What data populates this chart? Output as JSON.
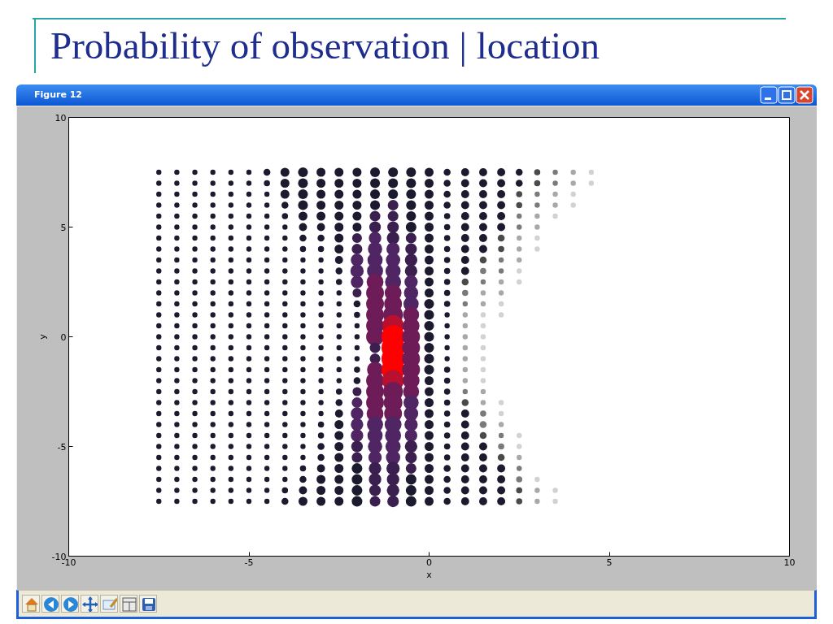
{
  "chart_data": {
    "type": "bubble",
    "title": "Probability of observation | location",
    "xlabel": "x",
    "ylabel": "y",
    "annotations": [
      "Figure 12"
    ],
    "xlim": [
      -10,
      10
    ],
    "ylim": [
      -10,
      10
    ],
    "xticks": [
      -10,
      -5,
      0,
      5,
      10
    ],
    "yticks": [
      -10,
      -5,
      0,
      5,
      10
    ],
    "grid": false,
    "marker": "circle",
    "series": [
      {
        "color": "#1c1a2e",
        "x": [
          -7.5,
          -7.5,
          -7.5,
          -7.5,
          -7.5,
          -7.5,
          -7.5,
          -7.5,
          -7.5,
          -7.5,
          -7.5,
          -7.5,
          -7.5,
          -7.5,
          -7.5,
          -7.5,
          -7.5,
          -7.5,
          -7.5,
          -7.5,
          -7.5,
          -7.5,
          -7.5,
          -7.5,
          -7.5,
          -7.5,
          -7.5,
          -7.5,
          -7.5,
          -7.5,
          -7.5
        ],
        "values": [
          7.5,
          7,
          6.5,
          6,
          5.5,
          5,
          4.5,
          4,
          3.5,
          3,
          2.5,
          2,
          1.5,
          1,
          0.5,
          0,
          -0.5,
          -1,
          -1.5,
          -2,
          -2.5,
          -3,
          -3.5,
          -4,
          -4.5,
          -5,
          -5.5,
          -6,
          -6.5,
          -7,
          -7.5
        ],
        "sizes": [
          0.05,
          0.05,
          0.05,
          0.05,
          0.05,
          0.05,
          0.05,
          0.05,
          0.05,
          0.05,
          0.05,
          0.05,
          0.05,
          0.05,
          0.05,
          0.05,
          0.05,
          0.05,
          0.05,
          0.05,
          0.05,
          0.05,
          0.05,
          0.05,
          0.05,
          0.05,
          0.05,
          0.05,
          0.05,
          0.05,
          0.05
        ]
      },
      {
        "color": "#1c1a2e",
        "x": [
          -7,
          -7,
          -7,
          -7,
          -7,
          -7,
          -7,
          -7,
          -7,
          -7,
          -7,
          -7,
          -7,
          -7,
          -7,
          -7,
          -7,
          -7,
          -7,
          -7,
          -7,
          -7,
          -7,
          -7,
          -7,
          -7,
          -7,
          -7,
          -7,
          -7,
          -7
        ],
        "values": [
          7.5,
          7,
          6.5,
          6,
          5.5,
          5,
          4.5,
          4,
          3.5,
          3,
          2.5,
          2,
          1.5,
          1,
          0.5,
          0,
          -0.5,
          -1,
          -1.5,
          -2,
          -2.5,
          -3,
          -3.5,
          -4,
          -4.5,
          -5,
          -5.5,
          -6,
          -6.5,
          -7,
          -7.5
        ],
        "sizes": [
          0.05,
          0.05,
          0.05,
          0.05,
          0.05,
          0.05,
          0.05,
          0.05,
          0.05,
          0.05,
          0.05,
          0.05,
          0.05,
          0.05,
          0.05,
          0.05,
          0.05,
          0.05,
          0.05,
          0.05,
          0.05,
          0.05,
          0.05,
          0.05,
          0.05,
          0.05,
          0.05,
          0.05,
          0.05,
          0.05,
          0.05
        ]
      },
      {
        "color": "#1c1a2e",
        "x": [
          -6.5,
          -6.5,
          -6.5,
          -6.5,
          -6.5,
          -6.5,
          -6.5,
          -6.5,
          -6.5,
          -6.5,
          -6.5,
          -6.5,
          -6.5,
          -6.5,
          -6.5,
          -6.5,
          -6.5,
          -6.5,
          -6.5,
          -6.5,
          -6.5,
          -6.5,
          -6.5,
          -6.5,
          -6.5,
          -6.5,
          -6.5,
          -6.5,
          -6.5,
          -6.5,
          -6.5
        ],
        "values": [
          7.5,
          7,
          6.5,
          6,
          5.5,
          5,
          4.5,
          4,
          3.5,
          3,
          2.5,
          2,
          1.5,
          1,
          0.5,
          0,
          -0.5,
          -1,
          -1.5,
          -2,
          -2.5,
          -3,
          -3.5,
          -4,
          -4.5,
          -5,
          -5.5,
          -6,
          -6.5,
          -7,
          -7.5
        ],
        "sizes": [
          0.05,
          0.05,
          0.05,
          0.05,
          0.05,
          0.05,
          0.05,
          0.05,
          0.05,
          0.05,
          0.05,
          0.05,
          0.05,
          0.05,
          0.05,
          0.05,
          0.05,
          0.05,
          0.05,
          0.05,
          0.05,
          0.05,
          0.05,
          0.05,
          0.05,
          0.05,
          0.05,
          0.05,
          0.05,
          0.05,
          0.05
        ]
      },
      {
        "color": "#1c1a2e",
        "x": [
          -6,
          -6,
          -6,
          -6,
          -6,
          -6,
          -6,
          -6,
          -6,
          -6,
          -6,
          -6,
          -6,
          -6,
          -6,
          -6,
          -6,
          -6,
          -6,
          -6,
          -6,
          -6,
          -6,
          -6,
          -6,
          -6,
          -6,
          -6,
          -6,
          -6,
          -6
        ],
        "values": [
          7.5,
          7,
          6.5,
          6,
          5.5,
          5,
          4.5,
          4,
          3.5,
          3,
          2.5,
          2,
          1.5,
          1,
          0.5,
          0,
          -0.5,
          -1,
          -1.5,
          -2,
          -2.5,
          -3,
          -3.5,
          -4,
          -4.5,
          -5,
          -5.5,
          -6,
          -6.5,
          -7,
          -7.5
        ],
        "sizes": [
          0.05,
          0.05,
          0.05,
          0.05,
          0.05,
          0.05,
          0.05,
          0.05,
          0.05,
          0.05,
          0.05,
          0.05,
          0.05,
          0.05,
          0.05,
          0.05,
          0.05,
          0.05,
          0.05,
          0.05,
          0.05,
          0.05,
          0.05,
          0.05,
          0.05,
          0.05,
          0.05,
          0.05,
          0.05,
          0.05,
          0.05
        ]
      },
      {
        "color": "#1c1a2e",
        "x": [
          -5.5,
          -5.5,
          -5.5,
          -5.5,
          -5.5,
          -5.5,
          -5.5,
          -5.5,
          -5.5,
          -5.5,
          -5.5,
          -5.5,
          -5.5,
          -5.5,
          -5.5,
          -5.5,
          -5.5,
          -5.5,
          -5.5,
          -5.5,
          -5.5,
          -5.5,
          -5.5,
          -5.5,
          -5.5,
          -5.5,
          -5.5,
          -5.5,
          -5.5,
          -5.5,
          -5.5
        ],
        "values": [
          7.5,
          7,
          6.5,
          6,
          5.5,
          5,
          4.5,
          4,
          3.5,
          3,
          2.5,
          2,
          1.5,
          1,
          0.5,
          0,
          -0.5,
          -1,
          -1.5,
          -2,
          -2.5,
          -3,
          -3.5,
          -4,
          -4.5,
          -5,
          -5.5,
          -6,
          -6.5,
          -7,
          -7.5
        ],
        "sizes": [
          0.05,
          0.05,
          0.05,
          0.05,
          0.05,
          0.05,
          0.05,
          0.05,
          0.05,
          0.05,
          0.05,
          0.05,
          0.05,
          0.05,
          0.05,
          0.05,
          0.05,
          0.05,
          0.05,
          0.05,
          0.05,
          0.05,
          0.05,
          0.05,
          0.05,
          0.05,
          0.05,
          0.05,
          0.05,
          0.05,
          0.05
        ]
      },
      {
        "color": "#1c1a2e",
        "x": [
          -5,
          -5,
          -5,
          -5,
          -5,
          -5,
          -5,
          -5,
          -5,
          -5,
          -5,
          -5,
          -5,
          -5,
          -5,
          -5,
          -5,
          -5,
          -5,
          -5,
          -5,
          -5,
          -5,
          -5,
          -5,
          -5,
          -5,
          -5,
          -5,
          -5,
          -5
        ],
        "values": [
          7.5,
          7,
          6.5,
          6,
          5.5,
          5,
          4.5,
          4,
          3.5,
          3,
          2.5,
          2,
          1.5,
          1,
          0.5,
          0,
          -0.5,
          -1,
          -1.5,
          -2,
          -2.5,
          -3,
          -3.5,
          -4,
          -4.5,
          -5,
          -5.5,
          -6,
          -6.5,
          -7,
          -7.5
        ],
        "sizes": [
          0.05,
          0.05,
          0.05,
          0.05,
          0.05,
          0.05,
          0.05,
          0.05,
          0.05,
          0.05,
          0.05,
          0.05,
          0.05,
          0.05,
          0.05,
          0.05,
          0.05,
          0.05,
          0.05,
          0.05,
          0.05,
          0.05,
          0.05,
          0.05,
          0.05,
          0.05,
          0.05,
          0.05,
          0.05,
          0.05,
          0.05
        ]
      },
      {
        "color": "#1c1a2e",
        "x": [
          -4.5,
          -4.5,
          -4.5,
          -4.5,
          -4.5,
          -4.5,
          -4.5,
          -4.5,
          -4.5,
          -4.5,
          -4.5,
          -4.5,
          -4.5,
          -4.5,
          -4.5,
          -4.5,
          -4.5,
          -4.5,
          -4.5,
          -4.5,
          -4.5,
          -4.5,
          -4.5,
          -4.5,
          -4.5,
          -4.5,
          -4.5,
          -4.5,
          -4.5,
          -4.5,
          -4.5
        ],
        "values": [
          7.5,
          7,
          6.5,
          6,
          5.5,
          5,
          4.5,
          4,
          3.5,
          3,
          2.5,
          2,
          1.5,
          1,
          0.5,
          0,
          -0.5,
          -1,
          -1.5,
          -2,
          -2.5,
          -3,
          -3.5,
          -4,
          -4.5,
          -5,
          -5.5,
          -6,
          -6.5,
          -7,
          -7.5
        ],
        "sizes": [
          0.09,
          0.07,
          0.05,
          0.05,
          0.05,
          0.05,
          0.05,
          0.05,
          0.05,
          0.05,
          0.05,
          0.05,
          0.05,
          0.05,
          0.05,
          0.05,
          0.05,
          0.05,
          0.05,
          0.05,
          0.05,
          0.05,
          0.05,
          0.05,
          0.05,
          0.05,
          0.05,
          0.05,
          0.05,
          0.05,
          0.05
        ]
      },
      {
        "color": "#1c1a2e",
        "x": [
          -4,
          -4,
          -4,
          -4,
          -4,
          -4,
          -4,
          -4,
          -4,
          -4,
          -4,
          -4,
          -4,
          -4,
          -4,
          -4,
          -4,
          -4,
          -4,
          -4,
          -4,
          -4,
          -4,
          -4,
          -4,
          -4,
          -4,
          -4,
          -4,
          -4,
          -4
        ],
        "values": [
          7.5,
          7,
          6.5,
          6,
          5.5,
          5,
          4.5,
          4,
          3.5,
          3,
          2.5,
          2,
          1.5,
          1,
          0.5,
          0,
          -0.5,
          -1,
          -1.5,
          -2,
          -2.5,
          -3,
          -3.5,
          -4,
          -4.5,
          -5,
          -5.5,
          -6,
          -6.5,
          -7,
          -7.5
        ],
        "sizes": [
          0.15,
          0.15,
          0.15,
          0.09,
          0.07,
          0.05,
          0.05,
          0.05,
          0.05,
          0.05,
          0.05,
          0.05,
          0.05,
          0.05,
          0.05,
          0.05,
          0.05,
          0.05,
          0.05,
          0.05,
          0.05,
          0.05,
          0.05,
          0.05,
          0.05,
          0.05,
          0.05,
          0.05,
          0.05,
          0.07,
          0.09
        ]
      },
      {
        "color": "#1c1a2e",
        "x": [
          -3.5,
          -3.5,
          -3.5,
          -3.5,
          -3.5,
          -3.5,
          -3.5,
          -3.5,
          -3.5,
          -3.5,
          -3.5,
          -3.5,
          -3.5,
          -3.5,
          -3.5,
          -3.5,
          -3.5,
          -3.5,
          -3.5,
          -3.5,
          -3.5,
          -3.5,
          -3.5,
          -3.5,
          -3.5,
          -3.5,
          -3.5,
          -3.5,
          -3.5,
          -3.5,
          -3.5
        ],
        "values": [
          7.5,
          7,
          6.5,
          6,
          5.5,
          5,
          4.5,
          4,
          3.5,
          3,
          2.5,
          2,
          1.5,
          1,
          0.5,
          0,
          -0.5,
          -1,
          -1.5,
          -2,
          -2.5,
          -3,
          -3.5,
          -4,
          -4.5,
          -5,
          -5.5,
          -6,
          -6.5,
          -7,
          -7.5
        ],
        "sizes": [
          0.18,
          0.18,
          0.18,
          0.18,
          0.15,
          0.12,
          0.09,
          0.07,
          0.05,
          0.05,
          0.05,
          0.05,
          0.05,
          0.05,
          0.05,
          0.05,
          0.05,
          0.05,
          0.05,
          0.05,
          0.05,
          0.05,
          0.05,
          0.05,
          0.05,
          0.05,
          0.05,
          0.07,
          0.09,
          0.12,
          0.15
        ]
      },
      {
        "color": "#1c1a2e",
        "x": [
          -3,
          -3,
          -3,
          -3,
          -3,
          -3,
          -3,
          -3,
          -3,
          -3,
          -3,
          -3,
          -3,
          -3,
          -3,
          -3,
          -3,
          -3,
          -3,
          -3,
          -3,
          -3,
          -3,
          -3,
          -3,
          -3,
          -3,
          -3,
          -3,
          -3,
          -3
        ],
        "values": [
          7.5,
          7,
          6.5,
          6,
          5.5,
          5,
          4.5,
          4,
          3.5,
          3,
          2.5,
          2,
          1.5,
          1,
          0.5,
          0,
          -0.5,
          -1,
          -1.5,
          -2,
          -2.5,
          -3,
          -3.5,
          -4,
          -4.5,
          -5,
          -5.5,
          -6,
          -6.5,
          -7,
          -7.5
        ],
        "sizes": [
          0.15,
          0.15,
          0.15,
          0.15,
          0.15,
          0.12,
          0.09,
          0.07,
          0.05,
          0.05,
          0.05,
          0.05,
          0.05,
          0.05,
          0.05,
          0.05,
          0.05,
          0.05,
          0.05,
          0.05,
          0.05,
          0.05,
          0.05,
          0.07,
          0.07,
          0.09,
          0.09,
          0.12,
          0.15,
          0.15,
          0.15
        ]
      },
      {
        "color": "#1c1a2e",
        "x": [
          -2.5,
          -2.5,
          -2.5,
          -2.5,
          -2.5,
          -2.5,
          -2.5,
          -2.5,
          -2.5,
          -2.5,
          -2.5,
          -2.5,
          -2.5,
          -2.5,
          -2.5,
          -2.5,
          -2.5,
          -2.5,
          -2.5,
          -2.5,
          -2.5,
          -2.5,
          -2.5,
          -2.5,
          -2.5,
          -2.5,
          -2.5,
          -2.5,
          -2.5,
          -2.5,
          -2.5
        ],
        "values": [
          7.5,
          7,
          6.5,
          6,
          5.5,
          5,
          4.5,
          4,
          3.5,
          3,
          2.5,
          2,
          1.5,
          1,
          0.5,
          0,
          -0.5,
          -1,
          -1.5,
          -2,
          -2.5,
          -3,
          -3.5,
          -4,
          -4.5,
          -5,
          -5.5,
          -6,
          -6.5,
          -7,
          -7.5
        ],
        "sizes": [
          0.15,
          0.15,
          0.15,
          0.15,
          0.15,
          0.15,
          0.15,
          0.15,
          0.12,
          0.09,
          0.07,
          0.05,
          0.05,
          0.05,
          0.05,
          0.05,
          0.05,
          0.05,
          0.05,
          0.05,
          0.07,
          0.09,
          0.12,
          0.15,
          0.15,
          0.15,
          0.15,
          0.15,
          0.15,
          0.15,
          0.15
        ]
      },
      {
        "x": [
          -2,
          -2,
          -2,
          -2,
          -2,
          -2,
          -2,
          -2,
          -2,
          -2,
          -2,
          -2,
          -2,
          -2,
          -2,
          -2,
          -2,
          -2,
          -2,
          -2,
          -2,
          -2,
          -2,
          -2,
          -2,
          -2,
          -2,
          -2,
          -2,
          -2,
          -2
        ],
        "values": [
          7.5,
          7,
          6.5,
          6,
          5.5,
          5,
          4.5,
          4,
          3.5,
          3,
          2.5,
          2,
          1.5,
          1,
          0.5,
          0,
          -0.5,
          -1,
          -1.5,
          -2,
          -2.5,
          -3,
          -3.5,
          -4,
          -4.5,
          -5,
          -5.5,
          -6,
          -6.5,
          -7,
          -7.5
        ],
        "sizes": [
          0.15,
          0.15,
          0.15,
          0.15,
          0.15,
          0.15,
          0.18,
          0.21,
          0.29,
          0.33,
          0.29,
          0.15,
          0.09,
          0.07,
          0.05,
          0.05,
          0.05,
          0.05,
          0.07,
          0.09,
          0.15,
          0.21,
          0.29,
          0.29,
          0.29,
          0.25,
          0.21,
          0.21,
          0.21,
          0.21,
          0.21
        ],
        "colors": [
          "#1c1a2e",
          "#1c1a2e",
          "#1c1a2e",
          "#1c1a2e",
          "#1c1a2e",
          "#1c1a2e",
          "#3a1f4f",
          "#3a1f4f",
          "#502563",
          "#502563",
          "#502563",
          "#3a1f4f",
          "#1c1a2e",
          "#1c1a2e",
          "#1c1a2e",
          "#1c1a2e",
          "#1c1a2e",
          "#1c1a2e",
          "#1c1a2e",
          "#1c1a2e",
          "#3a1f4f",
          "#502563",
          "#502563",
          "#502563",
          "#502563",
          "#3a1f4f",
          "#3a1f4f",
          "#1c1a2e",
          "#1c1a2e",
          "#1c1a2e",
          "#1c1a2e"
        ]
      },
      {
        "x": [
          -1.5,
          -1.5,
          -1.5,
          -1.5,
          -1.5,
          -1.5,
          -1.5,
          -1.5,
          -1.5,
          -1.5,
          -1.5,
          -1.5,
          -1.5,
          -1.5,
          -1.5,
          -1.5,
          -1.5,
          -1.5,
          -1.5,
          -1.5,
          -1.5,
          -1.5,
          -1.5,
          -1.5,
          -1.5,
          -1.5,
          -1.5,
          -1.5,
          -1.5,
          -1.5,
          -1.5
        ],
        "values": [
          7.5,
          7,
          6.5,
          6,
          5.5,
          5,
          4.5,
          4,
          3.5,
          3,
          2.5,
          2,
          1.5,
          1,
          0.5,
          0,
          -0.5,
          -1,
          -1.5,
          -2,
          -2.5,
          -3,
          -3.5,
          -4,
          -4.5,
          -5,
          -5.5,
          -6,
          -6.5,
          -7,
          -7.5
        ],
        "sizes": [
          0.18,
          0.18,
          0.18,
          0.18,
          0.21,
          0.25,
          0.29,
          0.38,
          0.43,
          0.48,
          0.53,
          0.59,
          0.59,
          0.59,
          0.59,
          0.59,
          0.21,
          0.21,
          0.48,
          0.59,
          0.59,
          0.59,
          0.53,
          0.48,
          0.43,
          0.38,
          0.33,
          0.29,
          0.29,
          0.25,
          0.21
        ],
        "colors": [
          "#1c1a2e",
          "#1c1a2e",
          "#1c1a2e",
          "#1c1a2e",
          "#3a1f4f",
          "#3a1f4f",
          "#502563",
          "#502563",
          "#502563",
          "#502563",
          "#6e1c58",
          "#6e1c58",
          "#6e1c58",
          "#6e1c58",
          "#6e1c58",
          "#6e1c58",
          "#3a1f4f",
          "#3a1f4f",
          "#6e1c58",
          "#6e1c58",
          "#6e1c58",
          "#6e1c58",
          "#6e1c58",
          "#502563",
          "#502563",
          "#502563",
          "#502563",
          "#3a1f4f",
          "#3a1f4f",
          "#3a1f4f",
          "#3a1f4f"
        ]
      },
      {
        "x": [
          -1,
          -1,
          -1,
          -1,
          -1,
          -1,
          -1,
          -1,
          -1,
          -1,
          -1,
          -1,
          -1,
          -1,
          -1,
          -1,
          -1,
          -1,
          -1,
          -1,
          -1,
          -1,
          -1,
          -1,
          -1,
          -1,
          -1,
          -1,
          -1,
          -1,
          -1
        ],
        "values": [
          7.5,
          7,
          6.5,
          6,
          5.5,
          5,
          4.5,
          4,
          3.5,
          3,
          2.5,
          2,
          1.5,
          1,
          0.5,
          0,
          -0.5,
          -1,
          -1.5,
          -2,
          -2.5,
          -3,
          -3.5,
          -4,
          -4.5,
          -5,
          -5.5,
          -6,
          -6.5,
          -7,
          -7.5
        ],
        "sizes": [
          0.18,
          0.18,
          0.18,
          0.21,
          0.21,
          0.25,
          0.29,
          0.33,
          0.38,
          0.43,
          0.48,
          0.53,
          0.59,
          0.72,
          0.85,
          1,
          1,
          1,
          1,
          0.85,
          0.72,
          0.65,
          0.59,
          0.53,
          0.48,
          0.43,
          0.38,
          0.33,
          0.29,
          0.29,
          0.25
        ],
        "colors": [
          "#1c1a2e",
          "#1c1a2e",
          "#1c1a2e",
          "#3a1f4f",
          "#3a1f4f",
          "#3a1f4f",
          "#3a1f4f",
          "#502563",
          "#502563",
          "#502563",
          "#502563",
          "#6e1c58",
          "#6e1c58",
          "#6e1c58",
          "#b8102e",
          "#ff0000",
          "#ff0000",
          "#ff0000",
          "#ff0000",
          "#b8102e",
          "#6e1c58",
          "#6e1c58",
          "#6e1c58",
          "#502563",
          "#502563",
          "#502563",
          "#502563",
          "#3a1f4f",
          "#3a1f4f",
          "#3a1f4f",
          "#3a1f4f"
        ]
      },
      {
        "x": [
          -0.5,
          -0.5,
          -0.5,
          -0.5,
          -0.5,
          -0.5,
          -0.5,
          -0.5,
          -0.5,
          -0.5,
          -0.5,
          -0.5,
          -0.5,
          -0.5,
          -0.5,
          -0.5,
          -0.5,
          -0.5,
          -0.5,
          -0.5,
          -0.5,
          -0.5,
          -0.5,
          -0.5,
          -0.5,
          -0.5,
          -0.5,
          -0.5,
          -0.5,
          -0.5,
          -0.5
        ],
        "values": [
          7.5,
          7,
          6.5,
          6,
          5.5,
          5,
          4.5,
          4,
          3.5,
          3,
          2.5,
          2,
          1.5,
          1,
          0.5,
          0,
          -0.5,
          -1,
          -1.5,
          -2,
          -2.5,
          -3,
          -3.5,
          -4,
          -4.5,
          -5,
          -5.5,
          -6,
          -6.5,
          -7,
          -7.5
        ],
        "sizes": [
          0.18,
          0.18,
          0.18,
          0.18,
          0.18,
          0.21,
          0.21,
          0.25,
          0.29,
          0.29,
          0.33,
          0.38,
          0.43,
          0.48,
          0.53,
          0.59,
          0.59,
          0.59,
          0.59,
          0.53,
          0.48,
          0.43,
          0.38,
          0.33,
          0.29,
          0.29,
          0.25,
          0.21,
          0.21,
          0.21,
          0.21
        ],
        "colors": [
          "#1c1a2e",
          "#1c1a2e",
          "#1c1a2e",
          "#1c1a2e",
          "#1c1a2e",
          "#1c1a2e",
          "#3a1f4f",
          "#3a1f4f",
          "#3a1f4f",
          "#3a1f4f",
          "#502563",
          "#502563",
          "#502563",
          "#6e1c58",
          "#6e1c58",
          "#6e1c58",
          "#6e1c58",
          "#6e1c58",
          "#6e1c58",
          "#6e1c58",
          "#6e1c58",
          "#502563",
          "#502563",
          "#502563",
          "#502563",
          "#3a1f4f",
          "#3a1f4f",
          "#3a1f4f",
          "#1c1a2e",
          "#1c1a2e",
          "#1c1a2e"
        ]
      },
      {
        "color": "#1c1a2e",
        "x": [
          0,
          0,
          0,
          0,
          0,
          0,
          0,
          0,
          0,
          0,
          0,
          0,
          0,
          0,
          0,
          0,
          0,
          0,
          0,
          0,
          0,
          0,
          0,
          0,
          0,
          0,
          0,
          0,
          0,
          0,
          0
        ],
        "values": [
          7.5,
          7,
          6.5,
          6,
          5.5,
          5,
          4.5,
          4,
          3.5,
          3,
          2.5,
          2,
          1.5,
          1,
          0.5,
          0,
          -0.5,
          -1,
          -1.5,
          -2,
          -2.5,
          -3,
          -3.5,
          -4,
          -4.5,
          -5,
          -5.5,
          -6,
          -6.5,
          -7,
          -7.5
        ],
        "sizes": [
          0.15,
          0.15,
          0.15,
          0.15,
          0.15,
          0.15,
          0.15,
          0.15,
          0.15,
          0.15,
          0.15,
          0.15,
          0.18,
          0.18,
          0.18,
          0.18,
          0.18,
          0.18,
          0.18,
          0.15,
          0.15,
          0.15,
          0.15,
          0.15,
          0.15,
          0.15,
          0.15,
          0.15,
          0.15,
          0.15,
          0.15
        ]
      },
      {
        "color": "#1c1a2e",
        "x": [
          0.5,
          0.5,
          0.5,
          0.5,
          0.5,
          0.5,
          0.5,
          0.5,
          0.5,
          0.5,
          0.5,
          0.5,
          0.5,
          0.5,
          0.5,
          0.5,
          0.5,
          0.5,
          0.5,
          0.5,
          0.5,
          0.5,
          0.5,
          0.5,
          0.5,
          0.5,
          0.5,
          0.5,
          0.5,
          0.5,
          0.5
        ],
        "values": [
          7.5,
          7,
          6.5,
          6,
          5.5,
          5,
          4.5,
          4,
          3.5,
          3,
          2.5,
          2,
          1.5,
          1,
          0.5,
          0,
          -0.5,
          -1,
          -1.5,
          -2,
          -2.5,
          -3,
          -3.5,
          -4,
          -4.5,
          -5,
          -5.5,
          -6,
          -6.5,
          -7,
          -7.5
        ],
        "sizes": [
          0.09,
          0.09,
          0.09,
          0.09,
          0.07,
          0.07,
          0.07,
          0.07,
          0.07,
          0.07,
          0.07,
          0.07,
          0.07,
          0.05,
          0.05,
          0.05,
          0.05,
          0.05,
          0.07,
          0.07,
          0.07,
          0.07,
          0.07,
          0.07,
          0.07,
          0.07,
          0.07,
          0.09,
          0.09,
          0.09,
          0.09
        ]
      },
      {
        "x": [
          1,
          1,
          1,
          1,
          1,
          1,
          1,
          1,
          1,
          1,
          1,
          1,
          1,
          1,
          1,
          1,
          1,
          1,
          1,
          1,
          1,
          1,
          1,
          1,
          1,
          1,
          1,
          1,
          1,
          1,
          1
        ],
        "values": [
          7.5,
          7,
          6.5,
          6,
          5.5,
          5,
          4.5,
          4,
          3.5,
          3,
          2.5,
          2,
          1.5,
          1,
          0.5,
          0,
          -0.5,
          -1,
          -1.5,
          -2,
          -2.5,
          -3,
          -3.5,
          -4,
          -4.5,
          -5,
          -5.5,
          -6,
          -6.5,
          -7,
          -7.5
        ],
        "sizes": [
          0.12,
          0.12,
          0.12,
          0.12,
          0.12,
          0.12,
          0.12,
          0.12,
          0.12,
          0.12,
          0.09,
          0.07,
          0.05,
          0.05,
          0.05,
          0.05,
          0.05,
          0.05,
          0.05,
          0.05,
          0.05,
          0.09,
          0.12,
          0.12,
          0.12,
          0.12,
          0.12,
          0.12,
          0.12,
          0.12,
          0.12
        ],
        "colors": [
          "#1c1a2e",
          "#1c1a2e",
          "#1c1a2e",
          "#1c1a2e",
          "#1c1a2e",
          "#1c1a2e",
          "#1c1a2e",
          "#1c1a2e",
          "#1c1a2e",
          "#1c1a2e",
          "#4a4a4a",
          "#7a7a7a",
          "#7a7a7a",
          "#a8a8a8",
          "#a8a8a8",
          "#a8a8a8",
          "#a8a8a8",
          "#a8a8a8",
          "#a8a8a8",
          "#a8a8a8",
          "#7a7a7a",
          "#4a4a4a",
          "#1c1a2e",
          "#1c1a2e",
          "#1c1a2e",
          "#1c1a2e",
          "#1c1a2e",
          "#1c1a2e",
          "#1c1a2e",
          "#1c1a2e",
          "#1c1a2e"
        ]
      },
      {
        "x": [
          1.5,
          1.5,
          1.5,
          1.5,
          1.5,
          1.5,
          1.5,
          1.5,
          1.5,
          1.5,
          1.5,
          1.5,
          1.5,
          1.5,
          1.5,
          1.5,
          1.5,
          1.5,
          1.5,
          1.5,
          1.5,
          1.5,
          1.5,
          1.5,
          1.5,
          1.5,
          1.5,
          1.5,
          1.5,
          1.5,
          1.5
        ],
        "values": [
          7.5,
          7,
          6.5,
          6,
          5.5,
          5,
          4.5,
          4,
          3.5,
          3,
          2.5,
          2,
          1.5,
          1,
          0.5,
          0,
          -0.5,
          -1,
          -1.5,
          -2,
          -2.5,
          -3,
          -3.5,
          -4,
          -4.5,
          -5,
          -5.5,
          -6,
          -6.5,
          -7,
          -7.5
        ],
        "sizes": [
          0.12,
          0.12,
          0.12,
          0.12,
          0.12,
          0.12,
          0.12,
          0.12,
          0.09,
          0.07,
          0.05,
          0.05,
          0.05,
          0.05,
          0.05,
          0.05,
          0.05,
          0.05,
          0.05,
          0.05,
          0.05,
          0.05,
          0.07,
          0.09,
          0.09,
          0.12,
          0.12,
          0.12,
          0.12,
          0.12,
          0.12
        ],
        "colors": [
          "#1c1a2e",
          "#1c1a2e",
          "#1c1a2e",
          "#1c1a2e",
          "#1c1a2e",
          "#1c1a2e",
          "#1c1a2e",
          "#1c1a2e",
          "#4a4a4a",
          "#7a7a7a",
          "#7a7a7a",
          "#a8a8a8",
          "#a8a8a8",
          "#d2d2d2",
          "#d2d2d2",
          "#d2d2d2",
          "#d2d2d2",
          "#d2d2d2",
          "#d2d2d2",
          "#d2d2d2",
          "#a8a8a8",
          "#a8a8a8",
          "#7a7a7a",
          "#7a7a7a",
          "#4a4a4a",
          "#1c1a2e",
          "#1c1a2e",
          "#1c1a2e",
          "#1c1a2e",
          "#1c1a2e",
          "#1c1a2e"
        ]
      },
      {
        "x": [
          2,
          2,
          2,
          2,
          2,
          2,
          2,
          2,
          2,
          2,
          2,
          2,
          2,
          2,
          2,
          2,
          2,
          2,
          2,
          2,
          2,
          2,
          2,
          2
        ],
        "values": [
          7.5,
          7,
          6.5,
          6,
          5.5,
          5,
          4.5,
          4,
          3.5,
          3,
          2.5,
          2,
          1.5,
          1,
          -3,
          -3.5,
          -4,
          -4.5,
          -5,
          -5.5,
          -6,
          -6.5,
          -7,
          -7.5
        ],
        "sizes": [
          0.12,
          0.12,
          0.12,
          0.12,
          0.12,
          0.12,
          0.09,
          0.07,
          0.05,
          0.05,
          0.05,
          0.05,
          0.05,
          0.05,
          0.05,
          0.05,
          0.05,
          0.05,
          0.07,
          0.09,
          0.12,
          0.12,
          0.12,
          0.12
        ],
        "colors": [
          "#1c1a2e",
          "#1c1a2e",
          "#1c1a2e",
          "#1c1a2e",
          "#1c1a2e",
          "#1c1a2e",
          "#4a4a4a",
          "#4a4a4a",
          "#7a7a7a",
          "#7a7a7a",
          "#a8a8a8",
          "#a8a8a8",
          "#d2d2d2",
          "#d2d2d2",
          "#d2d2d2",
          "#d2d2d2",
          "#a8a8a8",
          "#7a7a7a",
          "#7a7a7a",
          "#4a4a4a",
          "#1c1a2e",
          "#1c1a2e",
          "#1c1a2e",
          "#1c1a2e"
        ]
      },
      {
        "x": [
          2.5,
          2.5,
          2.5,
          2.5,
          2.5,
          2.5,
          2.5,
          2.5,
          2.5,
          2.5,
          2.5,
          2.5,
          2.5,
          2.5,
          2.5,
          2.5,
          2.5,
          2.5
        ],
        "values": [
          7.5,
          7,
          6.5,
          6,
          5.5,
          5,
          4.5,
          4,
          3.5,
          3,
          2.5,
          -4.5,
          -5,
          -5.5,
          -6,
          -6.5,
          -7,
          -7.5
        ],
        "sizes": [
          0.09,
          0.09,
          0.07,
          0.07,
          0.05,
          0.05,
          0.05,
          0.05,
          0.05,
          0.05,
          0.05,
          0.05,
          0.05,
          0.05,
          0.05,
          0.07,
          0.07,
          0.07
        ],
        "colors": [
          "#1c1a2e",
          "#1c1a2e",
          "#4a4a4a",
          "#4a4a4a",
          "#7a7a7a",
          "#7a7a7a",
          "#a8a8a8",
          "#a8a8a8",
          "#a8a8a8",
          "#d2d2d2",
          "#d2d2d2",
          "#d2d2d2",
          "#d2d2d2",
          "#a8a8a8",
          "#7a7a7a",
          "#7a7a7a",
          "#4a4a4a",
          "#4a4a4a"
        ]
      },
      {
        "x": [
          3,
          3,
          3,
          3,
          3,
          3,
          3,
          3,
          3,
          3,
          3
        ],
        "values": [
          7.5,
          7,
          6.5,
          6,
          5.5,
          5,
          4.5,
          4,
          -6.5,
          -7,
          -7.5
        ],
        "sizes": [
          0.07,
          0.07,
          0.05,
          0.05,
          0.05,
          0.05,
          0.05,
          0.05,
          0.05,
          0.05,
          0.05
        ],
        "colors": [
          "#4a4a4a",
          "#4a4a4a",
          "#7a7a7a",
          "#7a7a7a",
          "#a8a8a8",
          "#a8a8a8",
          "#d2d2d2",
          "#d2d2d2",
          "#d2d2d2",
          "#a8a8a8",
          "#a8a8a8"
        ]
      },
      {
        "x": [
          3.5,
          3.5,
          3.5,
          3.5,
          3.5,
          3.5,
          3.5
        ],
        "values": [
          7.5,
          7,
          6.5,
          6,
          5.5,
          -7,
          -7.5
        ],
        "sizes": [
          0.05,
          0.05,
          0.05,
          0.05,
          0.05,
          0.05,
          0.05
        ],
        "colors": [
          "#7a7a7a",
          "#7a7a7a",
          "#a8a8a8",
          "#a8a8a8",
          "#d2d2d2",
          "#d2d2d2",
          "#d2d2d2"
        ]
      },
      {
        "x": [
          4,
          4,
          4,
          4
        ],
        "values": [
          7.5,
          7,
          6.5,
          6
        ],
        "sizes": [
          0.05,
          0.05,
          0.05,
          0.05
        ],
        "colors": [
          "#a8a8a8",
          "#a8a8a8",
          "#d2d2d2",
          "#d2d2d2"
        ]
      },
      {
        "x": [
          4.5,
          4.5
        ],
        "values": [
          7.5,
          7
        ],
        "sizes": [
          0.05,
          0.05
        ],
        "colors": [
          "#d2d2d2",
          "#d2d2d2"
        ]
      }
    ]
  }
}
